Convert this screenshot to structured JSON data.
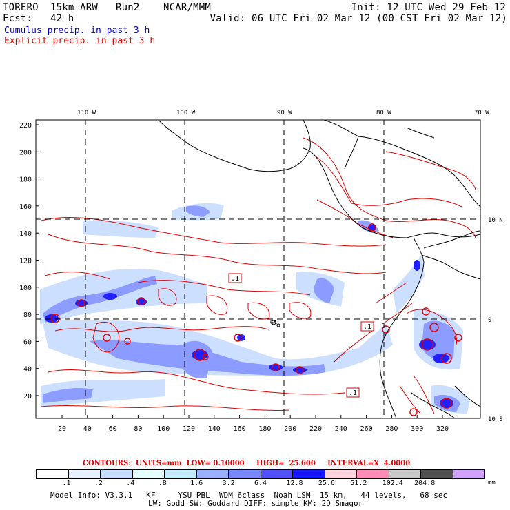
{
  "header": {
    "left1": "TORERO  15km ARW   Run2    NCAR/MMM",
    "right1": "Init: 12 UTC Wed 29 Feb 12",
    "left2": "Fcst:   42 h",
    "right2": "Valid: 06 UTC Fri 02 Mar 12 (00 CST Fri 02 Mar 12)",
    "cumulus": "Cumulus precip. in past 3 h",
    "explicit": "Explicit precip. in past 3 h"
  },
  "map": {
    "lon_labels": [
      "110 W",
      "100 W",
      "90 W",
      "80 W",
      "70 W"
    ],
    "lat_labels": [
      "10 N",
      "0",
      "10 S"
    ],
    "y_ticks": [
      "220",
      "200",
      "180",
      "160",
      "140",
      "120",
      "100",
      "80",
      "60",
      "40",
      "20"
    ],
    "x_ticks": [
      "20",
      "40",
      "60",
      "80",
      "100",
      "120",
      "140",
      "160",
      "180",
      "200",
      "220",
      "240",
      "260",
      "280",
      "300",
      "320"
    ],
    "box_labels": [
      ".1",
      ".1",
      ".1"
    ],
    "place_label": "GA"
  },
  "contours_line": {
    "text": "CONTOURS:  UNITS=mm  LOW= 0.10000     HIGH=  25.600     INTERVAL=X  4.0000"
  },
  "colorbar": {
    "colors": [
      "#ffffff",
      "#e8f0ff",
      "#c8dcff",
      "#e6ffff",
      "#c4ecff",
      "#9ab0ff",
      "#7887ff",
      "#5050ff",
      "#1414ff",
      "#ffd2dc",
      "#ff8cb4",
      "#c8c8c8",
      "#505050",
      "#d2a0ff"
    ],
    "labels": [
      ".1",
      ".2",
      ".4",
      ".8",
      "1.6",
      "3.2",
      "6.4",
      "12.8",
      "25.6",
      "51.2",
      "102.4",
      "204.8"
    ],
    "unit": "mm"
  },
  "footer": {
    "line1": "Model Info: V3.3.1   KF     YSU PBL  WDM 6class  Noah LSM  15 km,   44 levels,   68 sec",
    "line2": "LW: Godd SW: Goddard DIFF: simple KM: 2D Smagor"
  }
}
